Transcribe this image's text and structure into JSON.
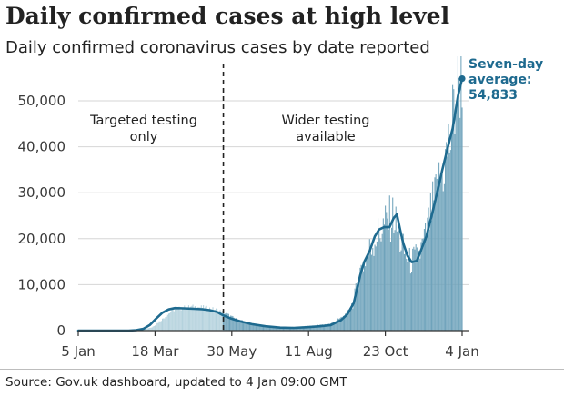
{
  "title": "Daily confirmed cases at high level",
  "subtitle": "Daily confirmed coronavirus cases by date reported",
  "source": "Source: Gov.uk dashboard, updated to 4 Jan 09:00 GMT",
  "colors": {
    "bar_light": "#b4d2dd",
    "bar_dark": "#6fa3bb",
    "line": "#1e6a8f",
    "grid": "#d6d6d6",
    "axis": "#333333"
  },
  "chart_data": {
    "type": "bar",
    "title": "Daily confirmed cases at high level",
    "subtitle": "Daily confirmed coronavirus cases by date reported",
    "xlabel": "",
    "ylabel": "",
    "grid": true,
    "ylim": [
      0,
      55000
    ],
    "x_start": "5 Jan",
    "x_end": "4 Jan",
    "x_ticks": [
      {
        "label": "5 Jan",
        "day": 0
      },
      {
        "label": "18 Mar",
        "day": 73
      },
      {
        "label": "30 May",
        "day": 146
      },
      {
        "label": "11 Aug",
        "day": 219
      },
      {
        "label": "23 Oct",
        "day": 292
      },
      {
        "label": "4 Jan",
        "day": 365
      }
    ],
    "y_ticks": [
      {
        "label": "0",
        "value": 0
      },
      {
        "label": "10,000",
        "value": 10000
      },
      {
        "label": "20,000",
        "value": 20000
      },
      {
        "label": "30,000",
        "value": 30000
      },
      {
        "label": "40,000",
        "value": 40000
      },
      {
        "label": "50,000",
        "value": 50000
      }
    ],
    "divider": {
      "day": 138,
      "style": "dashed"
    },
    "annotations": [
      {
        "lines": [
          "Targeted testing",
          "only"
        ],
        "position": "left-of-divider"
      },
      {
        "lines": [
          "Wider testing",
          "available"
        ],
        "position": "right-of-divider"
      }
    ],
    "series": [
      {
        "name": "Daily confirmed cases",
        "kind": "bars",
        "period_colors": {
          "before_divider": "bar_light",
          "after_divider": "bar_dark"
        },
        "approx_values_by_day": [
          [
            0,
            0
          ],
          [
            50,
            20
          ],
          [
            60,
            200
          ],
          [
            70,
            700
          ],
          [
            80,
            2500
          ],
          [
            90,
            4500
          ],
          [
            100,
            5000
          ],
          [
            110,
            5200
          ],
          [
            120,
            5000
          ],
          [
            130,
            4600
          ],
          [
            138,
            4000
          ],
          [
            150,
            2500
          ],
          [
            160,
            1800
          ],
          [
            175,
            1100
          ],
          [
            190,
            700
          ],
          [
            210,
            800
          ],
          [
            225,
            1100
          ],
          [
            240,
            1500
          ],
          [
            255,
            3500
          ],
          [
            262,
            6500
          ],
          [
            268,
            13000
          ],
          [
            275,
            16500
          ],
          [
            282,
            20000
          ],
          [
            288,
            22000
          ],
          [
            295,
            24000
          ],
          [
            300,
            25000
          ],
          [
            305,
            20000
          ],
          [
            310,
            17000
          ],
          [
            315,
            15000
          ],
          [
            320,
            15500
          ],
          [
            325,
            17000
          ],
          [
            330,
            20000
          ],
          [
            336,
            26000
          ],
          [
            342,
            31000
          ],
          [
            348,
            36000
          ],
          [
            354,
            42000
          ],
          [
            360,
            53000
          ],
          [
            365,
            58000
          ]
        ]
      },
      {
        "name": "Seven-day average",
        "kind": "line",
        "values_by_day": [
          [
            0,
            0
          ],
          [
            48,
            0
          ],
          [
            55,
            100
          ],
          [
            62,
            400
          ],
          [
            68,
            1200
          ],
          [
            74,
            2600
          ],
          [
            80,
            3900
          ],
          [
            86,
            4600
          ],
          [
            92,
            4900
          ],
          [
            100,
            4850
          ],
          [
            110,
            4750
          ],
          [
            118,
            4650
          ],
          [
            125,
            4450
          ],
          [
            132,
            4050
          ],
          [
            138,
            3300
          ],
          [
            145,
            2650
          ],
          [
            155,
            1950
          ],
          [
            165,
            1400
          ],
          [
            178,
            950
          ],
          [
            192,
            650
          ],
          [
            205,
            600
          ],
          [
            218,
            750
          ],
          [
            230,
            950
          ],
          [
            240,
            1200
          ],
          [
            250,
            2300
          ],
          [
            256,
            3600
          ],
          [
            262,
            6000
          ],
          [
            268,
            12000
          ],
          [
            272,
            15000
          ],
          [
            277,
            17300
          ],
          [
            282,
            20500
          ],
          [
            286,
            22000
          ],
          [
            291,
            22500
          ],
          [
            296,
            22500
          ],
          [
            300,
            24500
          ],
          [
            303,
            25300
          ],
          [
            306,
            22000
          ],
          [
            309,
            19000
          ],
          [
            313,
            16300
          ],
          [
            317,
            14900
          ],
          [
            322,
            15200
          ],
          [
            326,
            17500
          ],
          [
            331,
            20500
          ],
          [
            336,
            25000
          ],
          [
            341,
            29800
          ],
          [
            346,
            34800
          ],
          [
            351,
            39500
          ],
          [
            356,
            44000
          ],
          [
            361,
            51000
          ],
          [
            365,
            54833
          ]
        ]
      }
    ],
    "callout": {
      "lines": [
        "Seven-day",
        "average:",
        "54,833"
      ],
      "day": 365,
      "value": 54833
    }
  }
}
